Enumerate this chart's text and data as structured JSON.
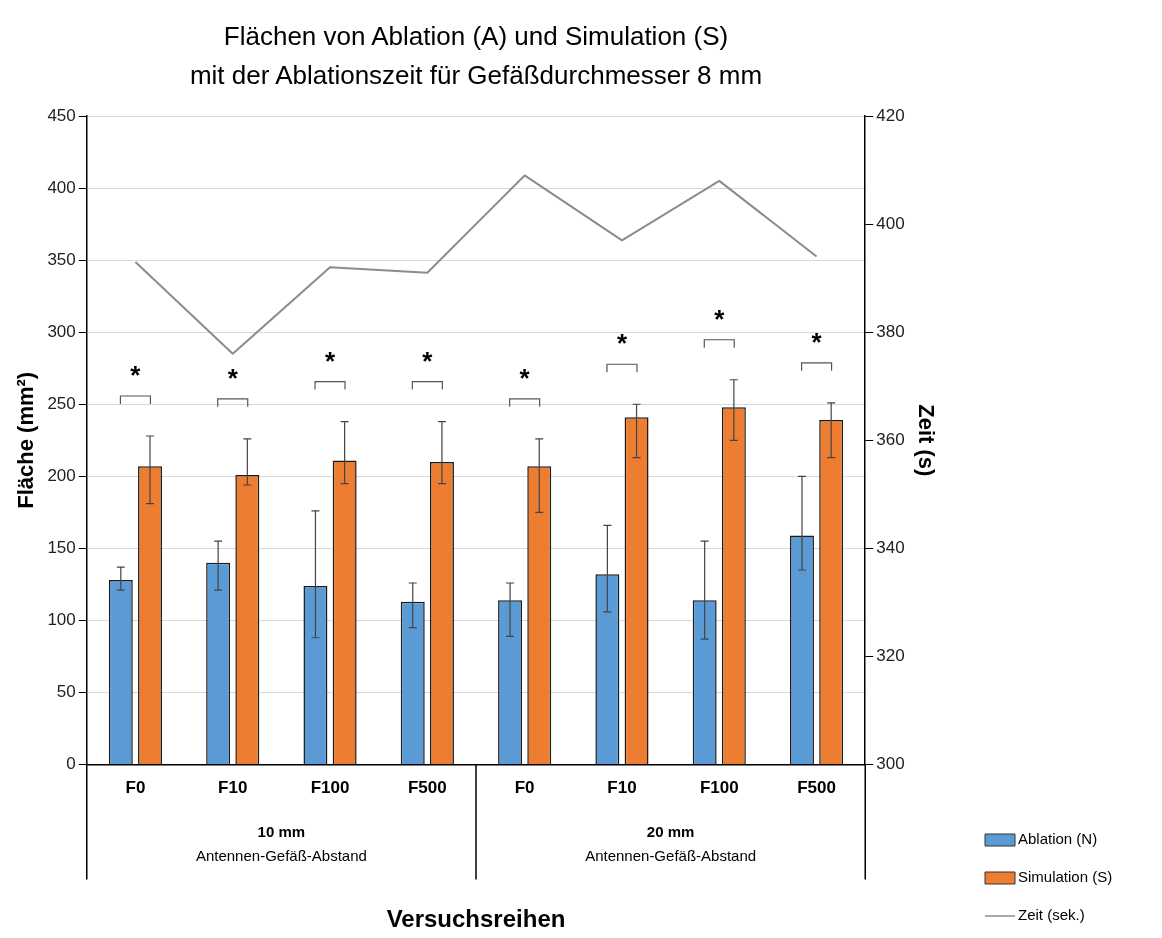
{
  "chart_data": {
    "type": "bar",
    "title": "Flächen von Ablation (A) und Simulation (S)\nmit der Ablationszeit für Gefäßdurchmesser 8 mm",
    "xlabel": "Versuchsreihen",
    "ylabel": "Fläche (mm²)",
    "y2label": "Zeit (s)",
    "categories": [
      "F0",
      "F10",
      "F100",
      "F500",
      "F0",
      "F10",
      "F100",
      "F500"
    ],
    "series": [
      {
        "name": "Ablation (N)",
        "color": "#5b9bd5",
        "values": [
          128,
          140,
          124,
          113,
          114,
          132,
          114,
          159
        ],
        "errors": [
          [
            121,
            137
          ],
          [
            121,
            155
          ],
          [
            88,
            176
          ],
          [
            95,
            126
          ],
          [
            89,
            126
          ],
          [
            106,
            166
          ],
          [
            87,
            155
          ],
          [
            135,
            200
          ]
        ]
      },
      {
        "name": "Simulation (S)",
        "color": "#ed7d31",
        "values": [
          207,
          201,
          211,
          210,
          207,
          241,
          248,
          239
        ],
        "errors": [
          [
            181,
            228
          ],
          [
            194,
            226
          ],
          [
            195,
            238
          ],
          [
            195,
            238
          ],
          [
            175,
            226
          ],
          [
            213,
            250
          ],
          [
            225,
            267
          ],
          [
            213,
            251
          ]
        ]
      },
      {
        "name": "Zeit (sek.)",
        "type": "line",
        "axis": "y2",
        "color": "#8c8c8c",
        "values": [
          393,
          376,
          392,
          391,
          409,
          397,
          408,
          394
        ]
      }
    ],
    "ylim": [
      0,
      450
    ],
    "yticks": [
      0,
      50,
      100,
      150,
      200,
      250,
      300,
      350,
      400,
      450
    ],
    "y2lim": [
      300,
      420
    ],
    "y2ticks": [
      300,
      320,
      340,
      360,
      380,
      400,
      420
    ],
    "grid": "y",
    "legend": "bottom right",
    "marker": "none",
    "annotations": [
      "10 mm",
      "Antennen-Gefäß-Abstand",
      "20 mm",
      "Antennen-Gefäß-Abstand",
      "*",
      "*",
      "*",
      "*",
      "*",
      "*",
      "*",
      "*"
    ]
  }
}
